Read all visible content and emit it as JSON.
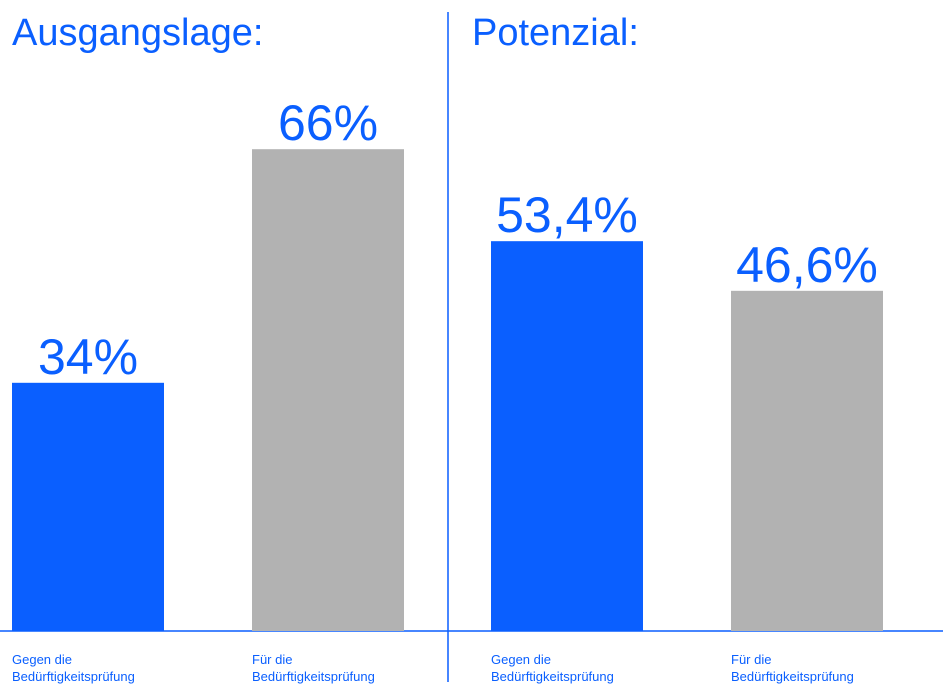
{
  "colors": {
    "accent": "#0a5fff",
    "gray": "#b2b2b2",
    "background": "#ffffff"
  },
  "chart_data": [
    {
      "type": "bar",
      "title": "Ausgangslage:",
      "categories": [
        [
          "Gegen die",
          "Bedürftigkeitsprüfung"
        ],
        [
          "Für die",
          "Bedürftigkeitsprüfung"
        ]
      ],
      "values": [
        34,
        66
      ],
      "value_labels": [
        "34%",
        "66%"
      ],
      "bar_colors": [
        "#0a5fff",
        "#b2b2b2"
      ],
      "ylim": [
        0,
        100
      ],
      "grid": false
    },
    {
      "type": "bar",
      "title": "Potenzial:",
      "categories": [
        [
          "Gegen die",
          "Bedürftigkeitsprüfung"
        ],
        [
          "Für die",
          "Bedürftigkeitsprüfung"
        ]
      ],
      "values": [
        53.4,
        46.6
      ],
      "value_labels": [
        "53,4%",
        "46,6%"
      ],
      "bar_colors": [
        "#0a5fff",
        "#b2b2b2"
      ],
      "ylim": [
        0,
        100
      ],
      "grid": false
    }
  ]
}
